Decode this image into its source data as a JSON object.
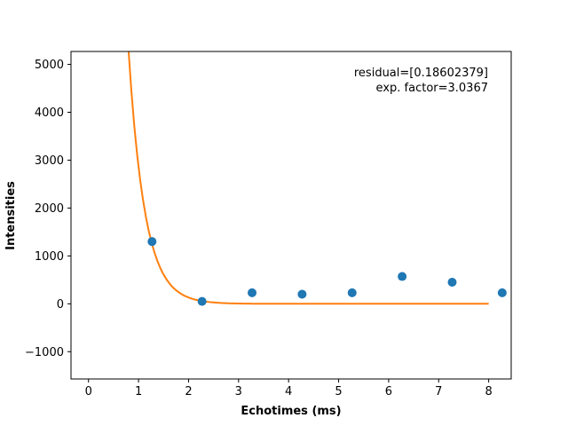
{
  "chart_data": {
    "type": "scatter",
    "title": "",
    "xlabel": "Echotimes (ms)",
    "ylabel": "Intensities",
    "xlim": [
      -0.35,
      8.45
    ],
    "ylim": [
      -1570,
      5270
    ],
    "xticks": [
      0,
      1,
      2,
      3,
      4,
      5,
      6,
      7,
      8
    ],
    "yticks": [
      -1000,
      0,
      1000,
      2000,
      3000,
      4000,
      5000
    ],
    "ytick_labels": [
      "−1000",
      "0",
      "1000",
      "2000",
      "3000",
      "4000",
      "5000"
    ],
    "grid": false,
    "legend": "none",
    "annotations": [
      "residual=[0.18602379]",
      "exp. factor=3.0367"
    ],
    "series": [
      {
        "kind": "scatter",
        "color": "#1f77b4",
        "x": [
          1.27,
          2.27,
          3.27,
          4.27,
          5.27,
          6.27,
          7.27,
          8.27
        ],
        "y": [
          1300,
          50,
          230,
          200,
          230,
          570,
          450,
          230
        ]
      },
      {
        "kind": "line",
        "color": "#ff7f0e",
        "x": [
          0.8,
          0.8576,
          0.9152,
          0.9728,
          1.0304,
          1.088,
          1.1456,
          1.2032,
          1.2608,
          1.3184,
          1.376,
          1.4336,
          1.4912,
          1.5488,
          1.6064,
          1.664,
          1.7216,
          1.7792,
          1.8368,
          1.8944,
          1.952,
          2.0096,
          2.0672,
          2.1248,
          2.1824,
          2.24,
          2.2976,
          2.3552,
          2.4128,
          2.4704,
          2.528,
          2.5856,
          2.6432,
          2.7008,
          2.7584,
          2.816,
          2.8736,
          2.9312,
          2.9888,
          3.0464,
          3.104,
          3.1616,
          3.2192,
          3.2768,
          3.3344,
          3.392,
          3.4496,
          3.5072,
          3.5648,
          3.6224,
          3.68,
          3.7376,
          3.7952,
          3.8528,
          3.9104,
          3.968,
          4.0256,
          4.0832,
          4.1408,
          4.1984,
          4.256,
          4.3136,
          4.3712,
          4.4288,
          4.4864,
          4.544,
          4.6016,
          4.6592,
          4.7168,
          4.7744,
          4.832,
          4.8896,
          4.9472,
          5.0048,
          5.0624,
          5.12,
          5.1776,
          5.2352,
          5.2928,
          5.3504,
          5.408,
          5.4656,
          5.5232,
          5.5808,
          5.6384,
          5.696,
          5.7536,
          5.8112,
          5.8688,
          5.9264,
          5.984,
          6.0416,
          6.0992,
          6.1568,
          6.2144,
          6.272,
          6.3296,
          6.3872,
          6.4448,
          6.5024,
          6.56,
          6.6176,
          6.6752,
          6.7328,
          6.7904,
          6.848,
          6.9056,
          6.9632,
          7.0208,
          7.0784,
          7.136,
          7.1936,
          7.2512,
          7.3088,
          7.3664,
          7.424,
          7.4816,
          7.5392,
          7.5968,
          7.6544,
          7.712,
          7.7696,
          7.8272,
          7.8848,
          7.9424,
          8.0
        ],
        "y": [
          5300,
          4438,
          3716,
          3111,
          2605,
          2181,
          1826,
          1529,
          1280,
          1072,
          897,
          751,
          629,
          527,
          441,
          369,
          309,
          259,
          217,
          181,
          152,
          127,
          106,
          89,
          75,
          62,
          52,
          44,
          37,
          31,
          26,
          21,
          18,
          15,
          13,
          10,
          9,
          7,
          6,
          5,
          4,
          4,
          3,
          2,
          2,
          2,
          1,
          1,
          1,
          1,
          1,
          1,
          0,
          0,
          0,
          0,
          0,
          0,
          0,
          0,
          0,
          0,
          0,
          0,
          0,
          0,
          0,
          0,
          0,
          0,
          0,
          0,
          0,
          0,
          0,
          0,
          0,
          0,
          0,
          0,
          0,
          0,
          0,
          0,
          0,
          0,
          0,
          0,
          0,
          0,
          0,
          0,
          0,
          0,
          0,
          0,
          0,
          0,
          0,
          0,
          0,
          0,
          0,
          0,
          0,
          0,
          0,
          0,
          0,
          0,
          0,
          0,
          0,
          0,
          0,
          0,
          0,
          0,
          0,
          0,
          0,
          0,
          0,
          0,
          0,
          0
        ]
      }
    ]
  }
}
